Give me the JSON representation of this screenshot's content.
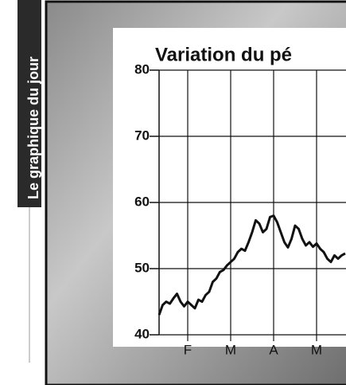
{
  "sidebar": {
    "label": "Le graphique du jour"
  },
  "chart_data": {
    "type": "line",
    "title": "Variation du pé",
    "values": [
      43,
      44.5,
      45,
      44.7,
      45.5,
      46.2,
      45,
      44.3,
      45,
      44.5,
      44,
      45.3,
      45,
      46,
      46.5,
      48,
      48.5,
      49.5,
      49.8,
      50.5,
      51,
      51.5,
      52.5,
      53,
      52.7,
      54,
      55.5,
      57.3,
      56.8,
      55.5,
      56,
      57.8,
      58,
      57,
      55.5,
      54,
      53.2,
      54.5,
      56.5,
      56,
      54.5,
      53.5,
      54,
      53.3,
      53.8,
      53,
      52.5,
      51.5,
      51,
      52,
      51.5,
      52,
      52.3
    ],
    "color": "#111111",
    "xlim": [
      0,
      52
    ],
    "xticks": [
      {
        "value": 8,
        "label": "F"
      },
      {
        "value": 20,
        "label": "M"
      },
      {
        "value": 32,
        "label": "A"
      },
      {
        "value": 44,
        "label": "M"
      }
    ],
    "ylim": [
      40,
      80
    ],
    "yticks": [
      40,
      50,
      60,
      70,
      80
    ],
    "grid": true
  }
}
